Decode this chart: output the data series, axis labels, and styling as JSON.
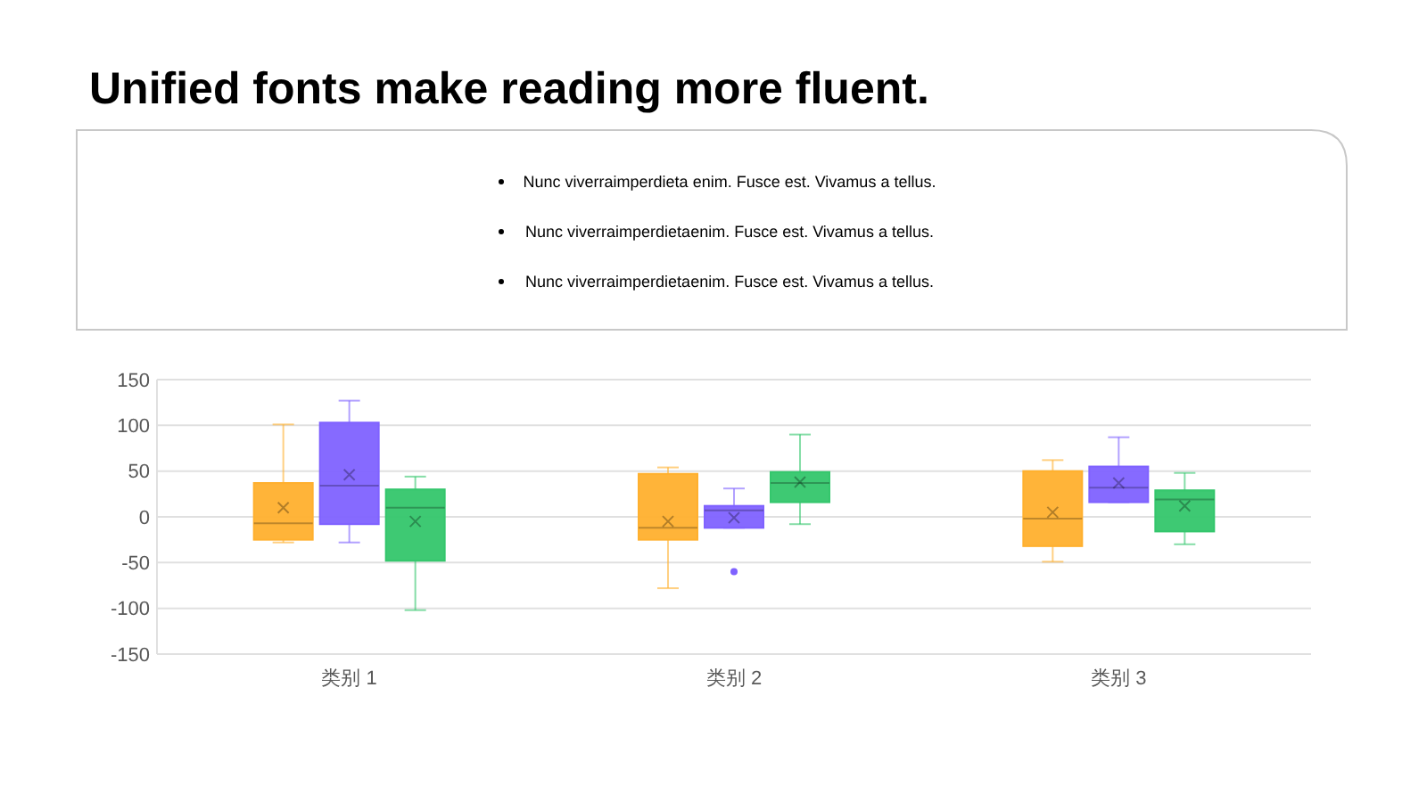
{
  "chart_data": {
    "type": "box",
    "title": "Unified fonts make reading more fluent.",
    "annotations": [
      "Nunc viverraimperdieta enim. Fusce est. Vivamus a tellus.",
      "Nunc viverraimperdietaenim. Fusce est. Vivamus a tellus.",
      "Nunc viverraimperdietaenim. Fusce est. Vivamus a tellus."
    ],
    "categories": [
      "类别 1",
      "类别 2",
      "类别 3"
    ],
    "ylim": [
      -150,
      150
    ],
    "yticks": [
      -150,
      -100,
      -50,
      0,
      50,
      100,
      150
    ],
    "grid": "y",
    "series": [
      {
        "color": "#ffb02e",
        "boxes": [
          {
            "low": -28,
            "q1": -25,
            "median": -7,
            "q3": 37,
            "high": 101,
            "mean": 10
          },
          {
            "low": -78,
            "q1": -25,
            "median": -12,
            "q3": 47,
            "high": 54,
            "mean": -5
          },
          {
            "low": -49,
            "q1": -32,
            "median": -2,
            "q3": 50,
            "high": 62,
            "mean": 5
          }
        ]
      },
      {
        "color": "#7f62ff",
        "boxes": [
          {
            "low": -28,
            "q1": -8,
            "median": 34,
            "q3": 103,
            "high": 127,
            "mean": 46
          },
          {
            "low": -12,
            "q1": -12,
            "median": 7,
            "q3": 12,
            "high": 31,
            "mean": -1,
            "outliers": [
              -60
            ]
          },
          {
            "low": 16,
            "q1": 16,
            "median": 32,
            "q3": 55,
            "high": 87,
            "mean": 37
          }
        ]
      },
      {
        "color": "#34c66c",
        "boxes": [
          {
            "low": -102,
            "q1": -48,
            "median": 10,
            "q3": 30,
            "high": 44,
            "mean": -5
          },
          {
            "low": -8,
            "q1": 16,
            "median": 37,
            "q3": 49,
            "high": 90,
            "mean": 38
          },
          {
            "low": -30,
            "q1": -16,
            "median": 19,
            "q3": 29,
            "high": 48,
            "mean": 12
          }
        ]
      }
    ]
  }
}
